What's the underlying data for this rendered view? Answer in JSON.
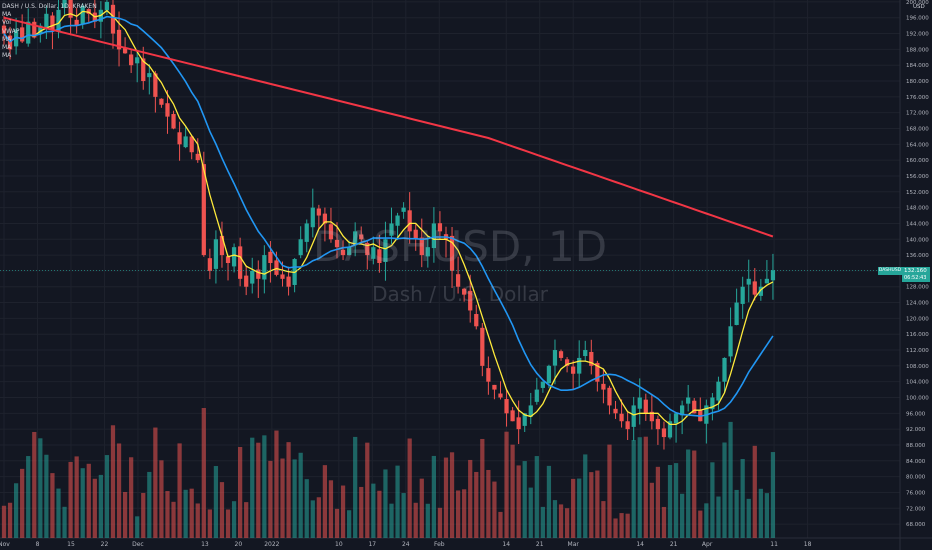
{
  "legend": {
    "symbol_line": "DASH / U.S. Dollar, 1D, KRAKEN",
    "lines": [
      "MA",
      "Vol",
      "VWAP",
      "MA",
      "MA",
      "MA"
    ]
  },
  "watermark": {
    "symbol": "DASHUSD, 1D",
    "description": "Dash / U.S. Dollar"
  },
  "price_axis": {
    "currency": "USD"
  },
  "last_price": {
    "symbol": "DASHUSD",
    "price": "132.160",
    "countdown": "06:52:43"
  },
  "colors": {
    "background": "#131722",
    "up": "#26a69a",
    "down": "#ef5350",
    "up_volume": "#26a69a",
    "down_volume": "#ef5350",
    "ma_fast": "#ffeb3b",
    "ma_mid": "#2196f3",
    "ma_slow": "#f23645",
    "grid": "#1e222d"
  },
  "chart_data": {
    "type": "candlestick",
    "ylim": [
      66,
      202
    ],
    "y_ticks": [
      68,
      72,
      76,
      80,
      84,
      88,
      92,
      96,
      100,
      104,
      108,
      112,
      116,
      120,
      124,
      128,
      132,
      136,
      140,
      144,
      148,
      152,
      156,
      160,
      164,
      168,
      172,
      176,
      180,
      184,
      188,
      192,
      196,
      200
    ],
    "x_ticks": [
      "Nov",
      "8",
      "15",
      "22",
      "Dec",
      "13",
      "20",
      "2022",
      "10",
      "17",
      "24",
      "Feb",
      "14",
      "21",
      "Mar",
      "14",
      "21",
      "Apr",
      "11",
      "18"
    ],
    "bars_shown": 128,
    "last_price": 132.16,
    "closes_approx": [
      192,
      188,
      193,
      190,
      195,
      191,
      194,
      197,
      193,
      198,
      201,
      196,
      194,
      199,
      197,
      195,
      198,
      200,
      192,
      188,
      187,
      184,
      186,
      180,
      182,
      176,
      174,
      171,
      168,
      164,
      166,
      162,
      160,
      136,
      132,
      140,
      136,
      134,
      138,
      130,
      128,
      132,
      130,
      136,
      134,
      131,
      130,
      128,
      135,
      140,
      144,
      148,
      146,
      144,
      140,
      138,
      136,
      138,
      142,
      140,
      136,
      138,
      134,
      140,
      144,
      146,
      148,
      142,
      140,
      136,
      138,
      144,
      142,
      140,
      132,
      128,
      126,
      122,
      118,
      108,
      104,
      102,
      100,
      96,
      94,
      92,
      96,
      98,
      102,
      104,
      108,
      112,
      110,
      108,
      106,
      110,
      112,
      108,
      104,
      102,
      98,
      96,
      94,
      92,
      98,
      100,
      96,
      94,
      92,
      90,
      94,
      96,
      98,
      100,
      96,
      94,
      98,
      100,
      104,
      110,
      118,
      124,
      128,
      130,
      126,
      128,
      130,
      132.16
    ],
    "ma_fast_label": "MA",
    "ma_mid_label": "MA",
    "ma_slow_label": "MA"
  }
}
